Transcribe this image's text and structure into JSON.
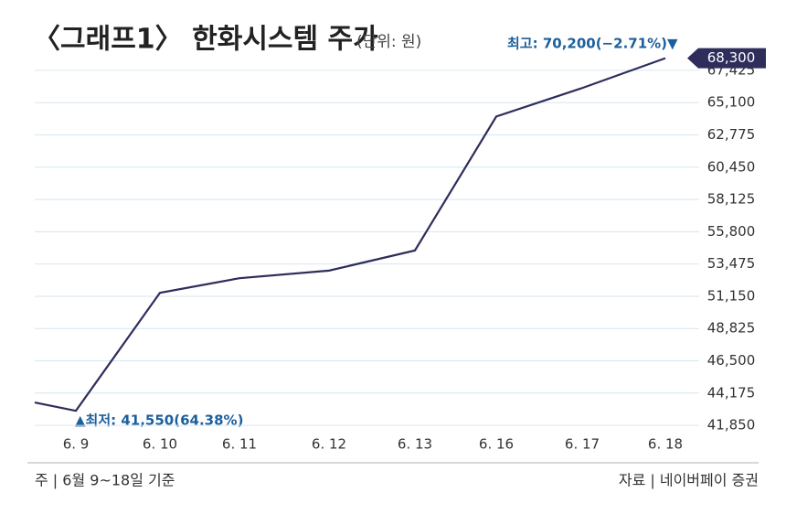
{
  "chart_data": {
    "type": "line",
    "title": "〈그래프1〉 한화시스템 주가",
    "subtitle": "(단위: 원)",
    "categories": [
      null,
      "6. 9",
      "6. 10",
      "6. 11",
      "6. 12",
      "6. 13",
      "6. 16",
      "6. 17",
      "6. 18"
    ],
    "series": [
      {
        "name": "한화시스템",
        "color": "#2e2d5c",
        "values": [
          43500,
          42900,
          51400,
          52450,
          53000,
          54450,
          64100,
          66150,
          68300
        ],
        "value_labels": [
          null,
          null,
          null,
          null,
          null,
          null,
          null,
          null,
          "68,300"
        ]
      }
    ],
    "ylim": [
      41000,
      69000
    ],
    "yticks": [
      {
        "value": 41850,
        "label": "41,850"
      },
      {
        "value": 44175,
        "label": "44,175"
      },
      {
        "value": 46500,
        "label": "46,500"
      },
      {
        "value": 48825,
        "label": "48,825"
      },
      {
        "value": 51150,
        "label": "51,150"
      },
      {
        "value": 53475,
        "label": "53,475"
      },
      {
        "value": 55800,
        "label": "55,800"
      },
      {
        "value": 58125,
        "label": "58,125"
      },
      {
        "value": 60450,
        "label": "60,450"
      },
      {
        "value": 62775,
        "label": "62,775"
      },
      {
        "value": 65100,
        "label": "65,100"
      },
      {
        "value": 67425,
        "label": "67,425"
      }
    ],
    "grid": true,
    "annotations": {
      "high": "최고: 70,200(−2.71%)▼",
      "low": "▲최저: 41,550(64.38%)"
    },
    "footer": {
      "left": "주 | 6월 9~18일 기준",
      "right": "자료 | 네이버페이 증권"
    }
  }
}
